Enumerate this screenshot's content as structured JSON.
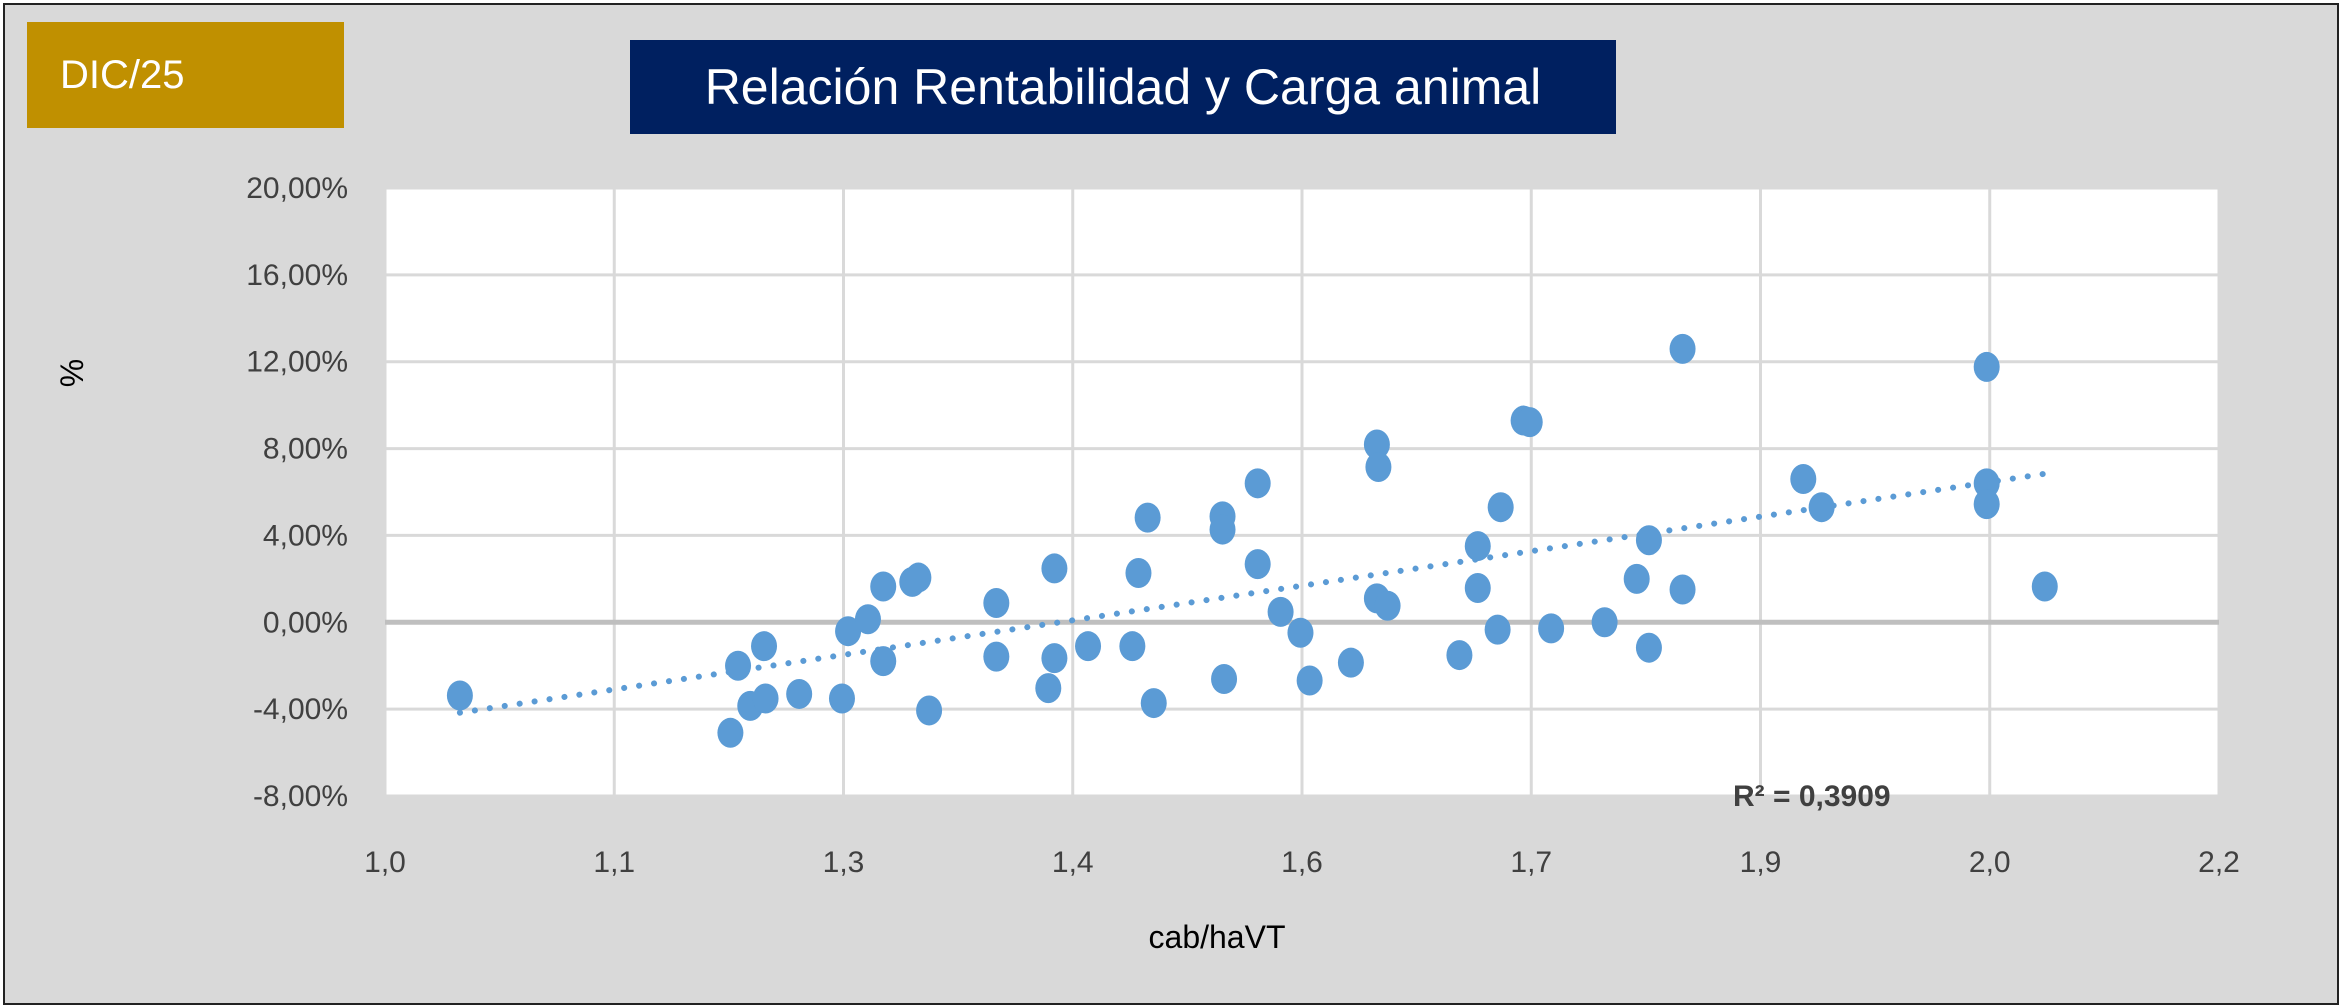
{
  "badge": "DIC/25",
  "colors": {
    "background": "#D9D9D9",
    "badge": "#C09000",
    "title_bg": "#002060",
    "points": "#5B9BD5",
    "trendline": "#5B9BD5"
  },
  "chart_data": {
    "type": "scatter",
    "title": "Relación Rentabilidad y Carga animal",
    "xlabel": "cab/haVT",
    "ylabel": "%",
    "xlim": [
      1.0,
      2.2
    ],
    "ylim": [
      -8,
      20
    ],
    "x_ticks": [
      1.0,
      1.15,
      1.3,
      1.45,
      1.6,
      1.75,
      1.9,
      2.05,
      2.2
    ],
    "x_tick_labels": [
      "1,0",
      "1,1",
      "1,3",
      "1,4",
      "1,6",
      "1,7",
      "1,9",
      "2,0",
      "2,2"
    ],
    "y_ticks": [
      -8,
      -4,
      0,
      4,
      8,
      12,
      16,
      20
    ],
    "y_tick_labels": [
      "-8,00%",
      "-4,00%",
      "0,00%",
      "4,00%",
      "8,00%",
      "12,00%",
      "16,00%",
      "20,00%"
    ],
    "grid": true,
    "trendline": "linear",
    "r2_label": "R² = 0,3909",
    "points": [
      [
        1.049,
        -3.37
      ],
      [
        1.226,
        -5.09
      ],
      [
        1.231,
        -2.0
      ],
      [
        1.239,
        -3.85
      ],
      [
        1.248,
        -1.1
      ],
      [
        1.249,
        -3.51
      ],
      [
        1.271,
        -3.3
      ],
      [
        1.299,
        -3.51
      ],
      [
        1.303,
        -0.41
      ],
      [
        1.316,
        0.14
      ],
      [
        1.326,
        1.65
      ],
      [
        1.326,
        -1.79
      ],
      [
        1.345,
        1.86
      ],
      [
        1.349,
        2.06
      ],
      [
        1.356,
        -4.06
      ],
      [
        1.4,
        0.89
      ],
      [
        1.4,
        -1.58
      ],
      [
        1.434,
        -3.03
      ],
      [
        1.438,
        2.48
      ],
      [
        1.438,
        -1.65
      ],
      [
        1.46,
        -1.1
      ],
      [
        1.489,
        -1.1
      ],
      [
        1.493,
        2.27
      ],
      [
        1.499,
        4.82
      ],
      [
        1.503,
        -3.72
      ],
      [
        1.548,
        4.88
      ],
      [
        1.548,
        4.27
      ],
      [
        1.549,
        -2.61
      ],
      [
        1.571,
        6.4
      ],
      [
        1.571,
        2.68
      ],
      [
        1.586,
        0.48
      ],
      [
        1.599,
        -0.48
      ],
      [
        1.605,
        -2.68
      ],
      [
        1.632,
        -1.86
      ],
      [
        1.649,
        8.19
      ],
      [
        1.65,
        7.15
      ],
      [
        1.649,
        1.1
      ],
      [
        1.656,
        0.76
      ],
      [
        1.703,
        -1.51
      ],
      [
        1.715,
        3.51
      ],
      [
        1.715,
        1.58
      ],
      [
        1.728,
        -0.34
      ],
      [
        1.73,
        5.3
      ],
      [
        1.745,
        9.29
      ],
      [
        1.749,
        9.22
      ],
      [
        1.763,
        -0.28
      ],
      [
        1.798,
        0.0
      ],
      [
        1.819,
        2.0
      ],
      [
        1.827,
        3.78
      ],
      [
        1.827,
        -1.17
      ],
      [
        1.849,
        12.59
      ],
      [
        1.849,
        1.51
      ],
      [
        1.928,
        6.6
      ],
      [
        1.94,
        5.3
      ],
      [
        2.048,
        11.76
      ],
      [
        2.048,
        6.4
      ],
      [
        2.048,
        5.44
      ],
      [
        2.086,
        1.65
      ]
    ]
  }
}
